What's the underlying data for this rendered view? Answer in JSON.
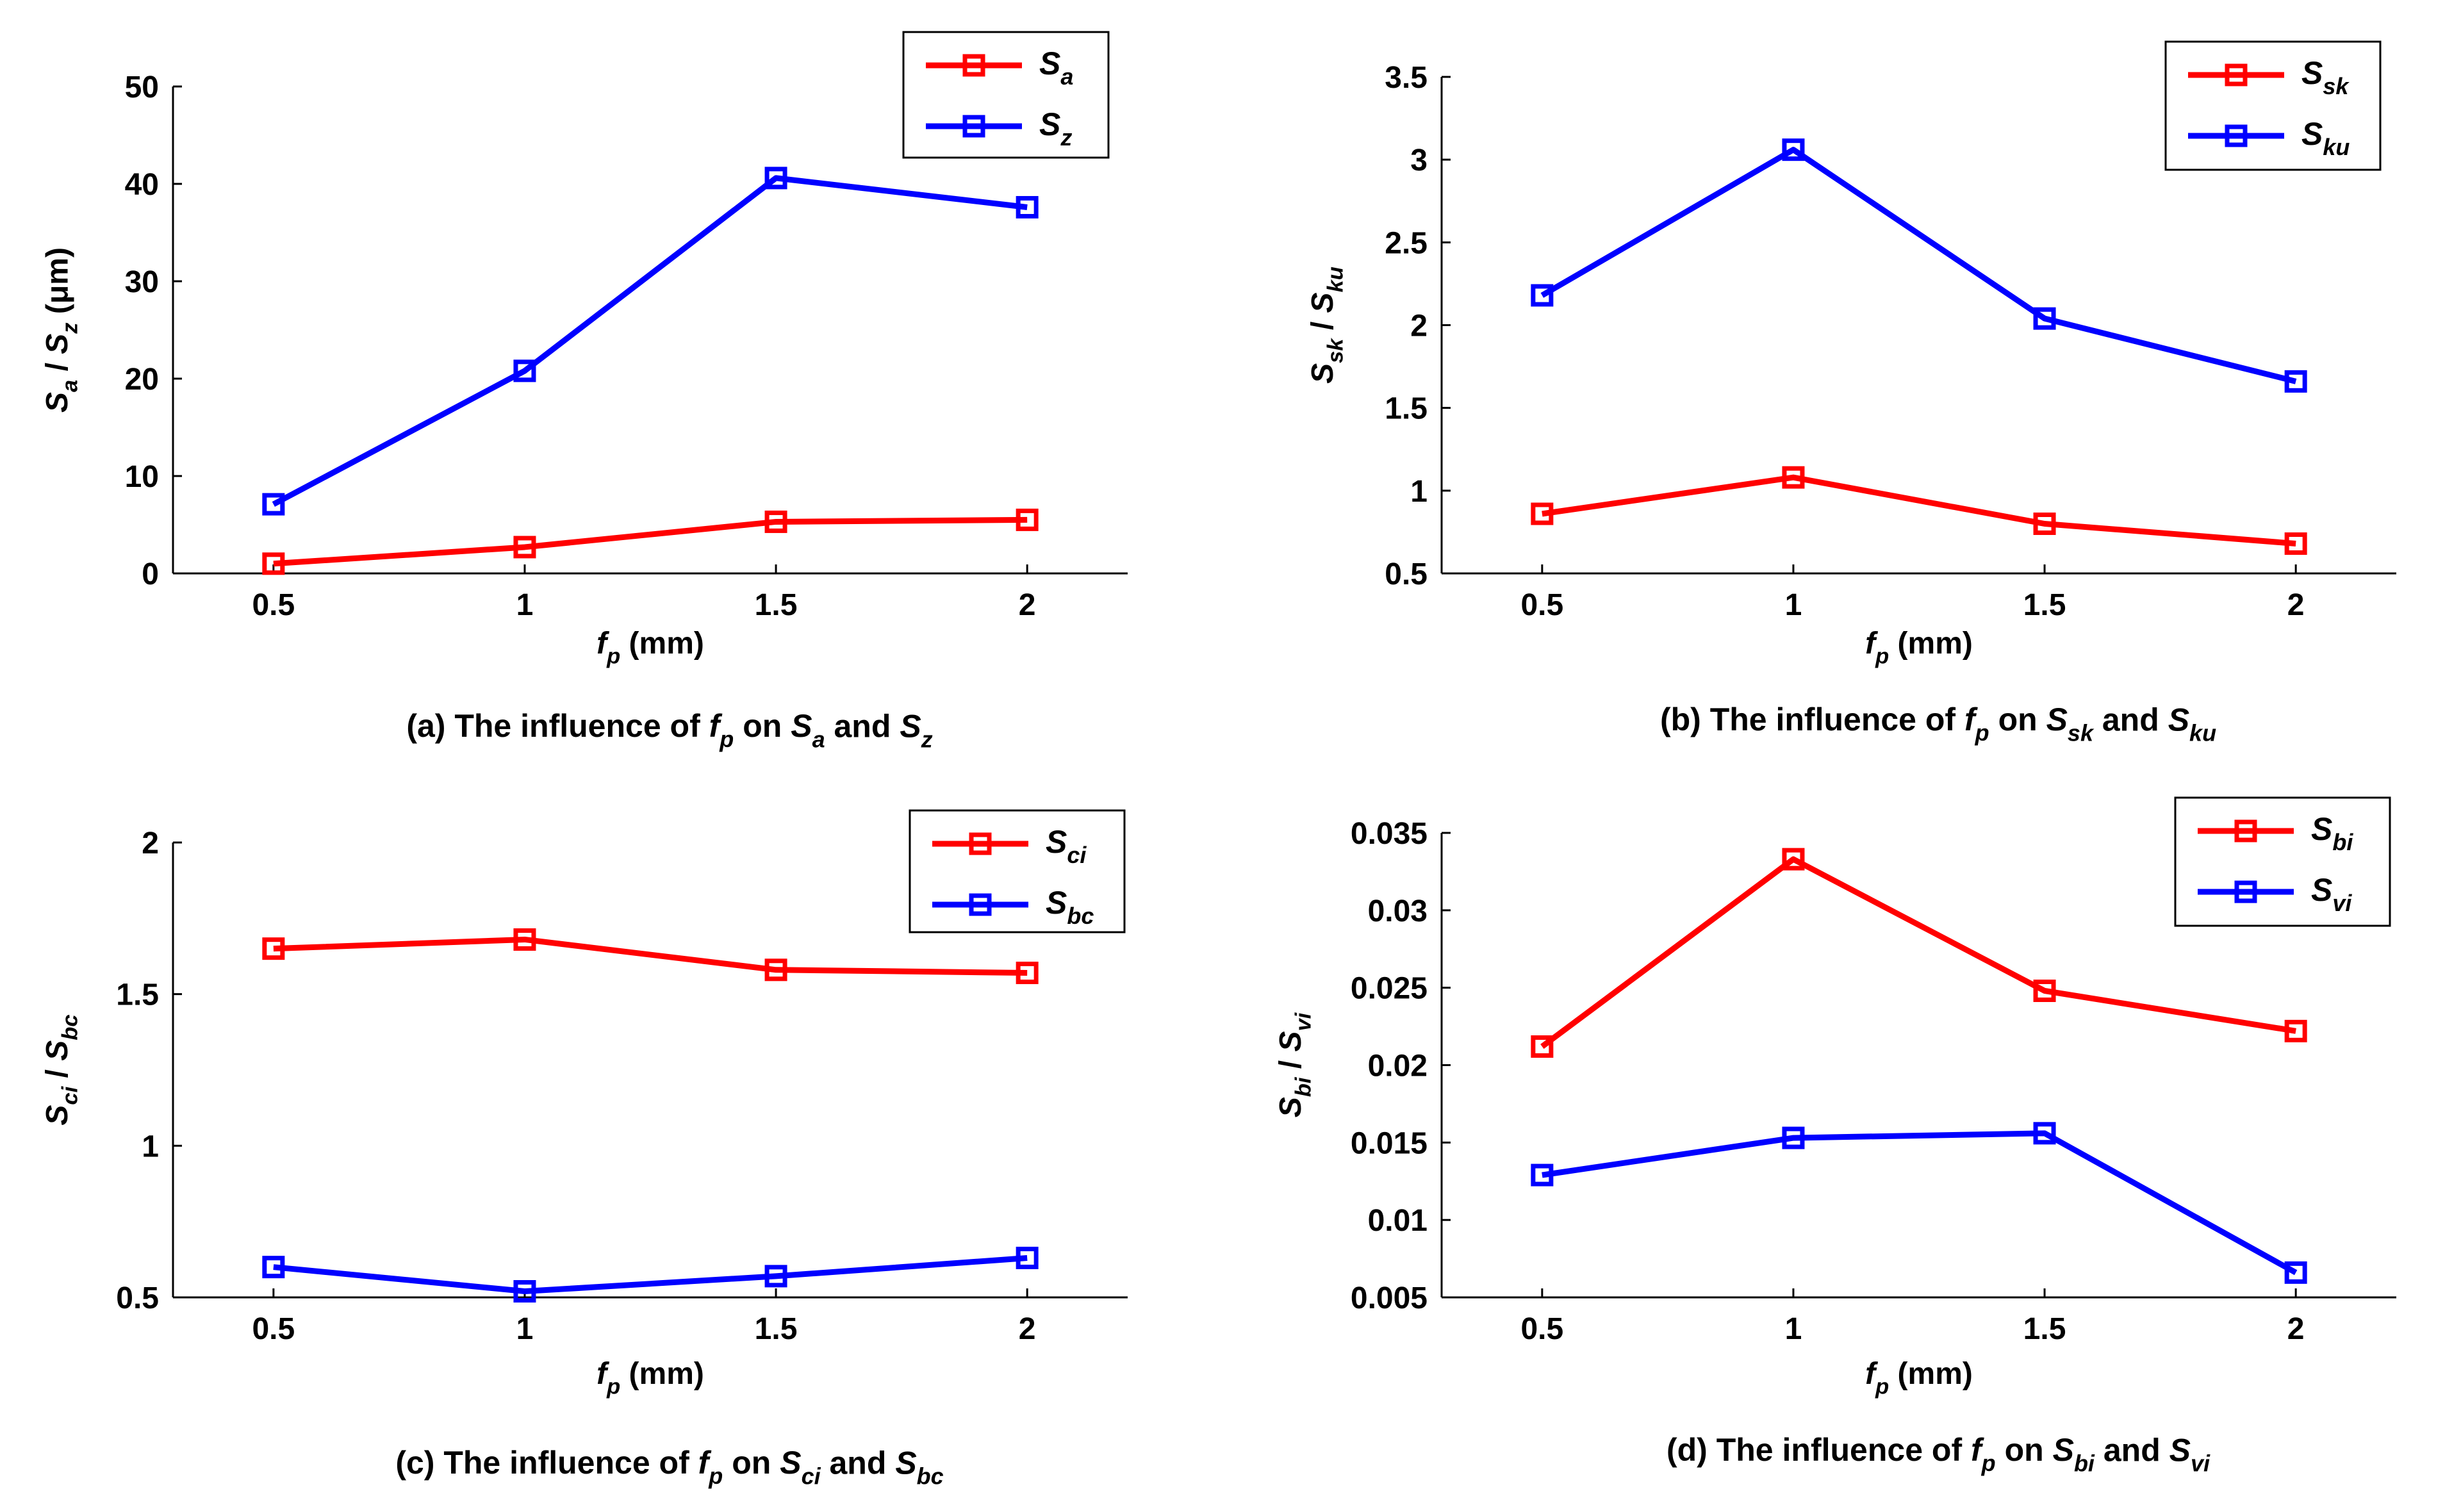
{
  "chart_data": [
    {
      "id": "a",
      "type": "line",
      "x": [
        0.5,
        1,
        1.5,
        2
      ],
      "xticks": [
        "0.5",
        "1",
        "1.5",
        "2"
      ],
      "xlim": [
        0.3,
        2.2
      ],
      "ylim": [
        0,
        50
      ],
      "yticks": [
        0,
        10,
        20,
        30,
        40,
        50
      ],
      "ytick_labels": [
        "0",
        "10",
        "20",
        "30",
        "40",
        "50"
      ],
      "xlabel": {
        "main": "f",
        "sub": "p",
        "rest": " (mm)"
      },
      "ylabel": "S_a / S_z (μm)",
      "caption": "(a) The influence of f_p on S_a and S_z",
      "series": [
        {
          "name": "S_a",
          "sym": "S",
          "sub": "a",
          "color": "#ff0000",
          "values": [
            1.0,
            2.7,
            5.3,
            5.5
          ]
        },
        {
          "name": "S_z",
          "sym": "S",
          "sub": "z",
          "color": "#0000ff",
          "values": [
            7.1,
            20.8,
            40.6,
            37.6
          ]
        }
      ]
    },
    {
      "id": "b",
      "type": "line",
      "x": [
        0.5,
        1,
        1.5,
        2
      ],
      "xticks": [
        "0.5",
        "1",
        "1.5",
        "2"
      ],
      "xlim": [
        0.3,
        2.2
      ],
      "ylim": [
        0.5,
        3.5
      ],
      "yticks": [
        0.5,
        1,
        1.5,
        2,
        2.5,
        3,
        3.5
      ],
      "ytick_labels": [
        "0.5",
        "1",
        "1.5",
        "2",
        "2.5",
        "3",
        "3.5"
      ],
      "xlabel": {
        "main": "f",
        "sub": "p",
        "rest": " (mm)"
      },
      "ylabel": "S_sk / S_ku",
      "caption": "(b) The influence of f_p on S_sk and S_ku",
      "series": [
        {
          "name": "S_sk",
          "sym": "S",
          "sub": "sk",
          "color": "#ff0000",
          "values": [
            0.86,
            1.08,
            0.8,
            0.68
          ]
        },
        {
          "name": "S_ku",
          "sym": "S",
          "sub": "ku",
          "color": "#0000ff",
          "values": [
            2.18,
            3.06,
            2.04,
            1.66
          ]
        }
      ]
    },
    {
      "id": "c",
      "type": "line",
      "x": [
        0.5,
        1,
        1.5,
        2
      ],
      "xticks": [
        "0.5",
        "1",
        "1.5",
        "2"
      ],
      "xlim": [
        0.3,
        2.2
      ],
      "ylim": [
        0.5,
        2
      ],
      "yticks": [
        0.5,
        1,
        1.5,
        2
      ],
      "ytick_labels": [
        "0.5",
        "1",
        "1.5",
        "2"
      ],
      "xlabel": {
        "main": "f",
        "sub": "p",
        "rest": " (mm)"
      },
      "ylabel": "S_ci / S_bc",
      "caption": "(c) The influence of f_p on S_ci and S_bc",
      "series": [
        {
          "name": "S_ci",
          "sym": "S",
          "sub": "ci",
          "color": "#ff0000",
          "values": [
            1.65,
            1.68,
            1.58,
            1.57
          ]
        },
        {
          "name": "S_bc",
          "sym": "S",
          "sub": "bc",
          "color": "#0000ff",
          "values": [
            0.6,
            0.52,
            0.57,
            0.63
          ]
        }
      ]
    },
    {
      "id": "d",
      "type": "line",
      "x": [
        0.5,
        1,
        1.5,
        2
      ],
      "xticks": [
        "0.5",
        "1",
        "1.5",
        "2"
      ],
      "xlim": [
        0.3,
        2.2
      ],
      "ylim": [
        0.005,
        0.035
      ],
      "yticks": [
        0.005,
        0.01,
        0.015,
        0.02,
        0.025,
        0.03,
        0.035
      ],
      "ytick_labels": [
        "0.005",
        "0.01",
        "0.015",
        "0.02",
        "0.025",
        "0.03",
        "0.035"
      ],
      "xlabel": {
        "main": "f",
        "sub": "p",
        "rest": " (mm)"
      },
      "ylabel": "S_bi / S_vi",
      "caption": "(d) The influence of f_p on S_bi and S_vi",
      "series": [
        {
          "name": "S_bi",
          "sym": "S",
          "sub": "bi",
          "color": "#ff0000",
          "values": [
            0.0212,
            0.0333,
            0.0248,
            0.0222
          ]
        },
        {
          "name": "S_vi",
          "sym": "S",
          "sub": "vi",
          "color": "#0000ff",
          "values": [
            0.0129,
            0.0153,
            0.0156,
            0.0066
          ]
        }
      ]
    }
  ]
}
